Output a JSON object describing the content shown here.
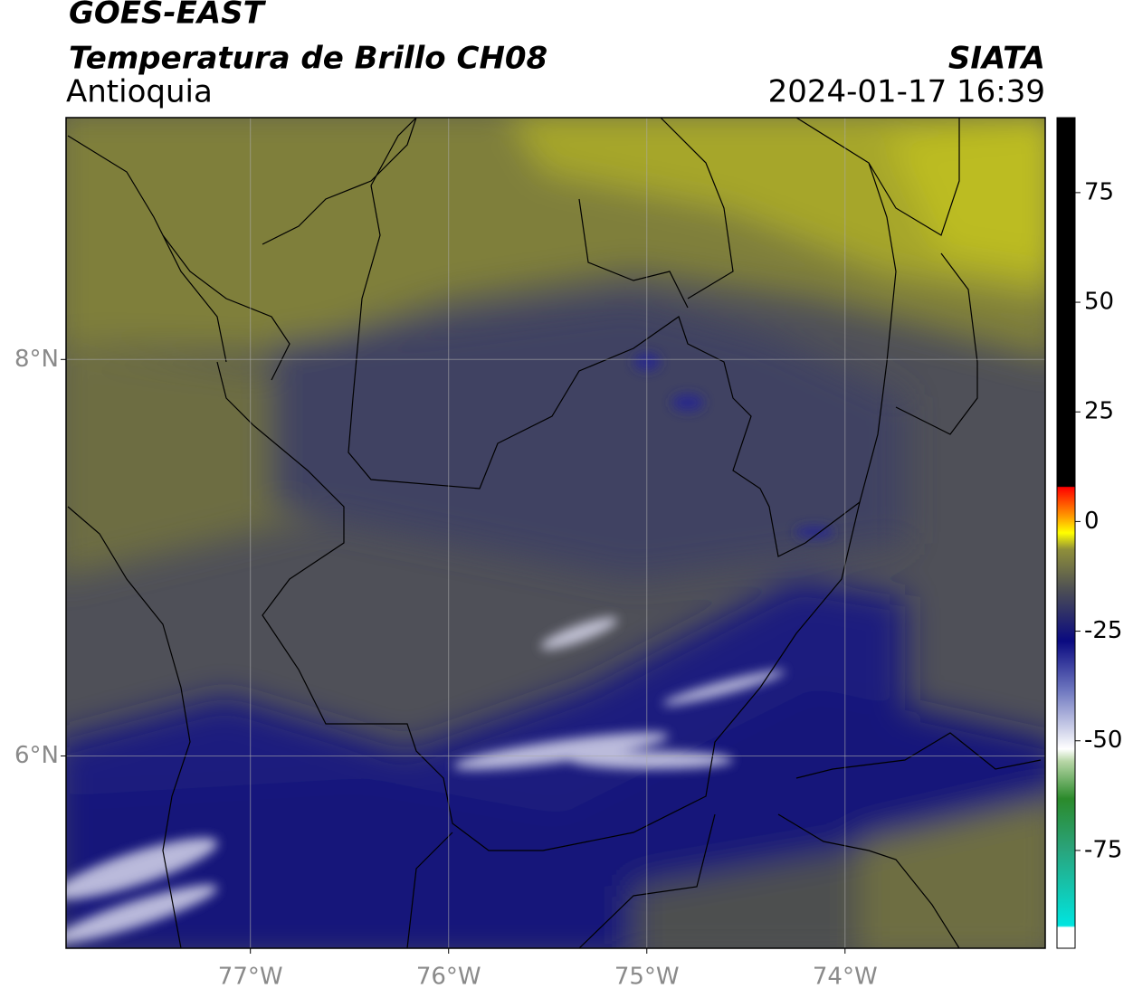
{
  "header": {
    "title": "GOES-EAST",
    "subtitle": "Temperatura de Brillo CH08",
    "region": "Antioquia",
    "source": "SIATA",
    "datetime": "2024-01-17 16:39"
  },
  "map": {
    "lon_range": [
      -77.93,
      -72.99
    ],
    "lat_range": [
      5.03,
      9.22
    ],
    "lat_ticks": [
      {
        "value": 6,
        "label": "6°N"
      },
      {
        "value": 8,
        "label": "8°N"
      }
    ],
    "lon_ticks": [
      {
        "value": -77,
        "label": "77°W"
      },
      {
        "value": -76,
        "label": "76°W"
      },
      {
        "value": -75,
        "label": "75°W"
      },
      {
        "value": -74,
        "label": "74°W"
      }
    ],
    "grid": true
  },
  "colorbar": {
    "range": [
      -97.3,
      92.1
    ],
    "ticks": [
      -75,
      -50,
      -25,
      0,
      25,
      50,
      75
    ]
  }
}
